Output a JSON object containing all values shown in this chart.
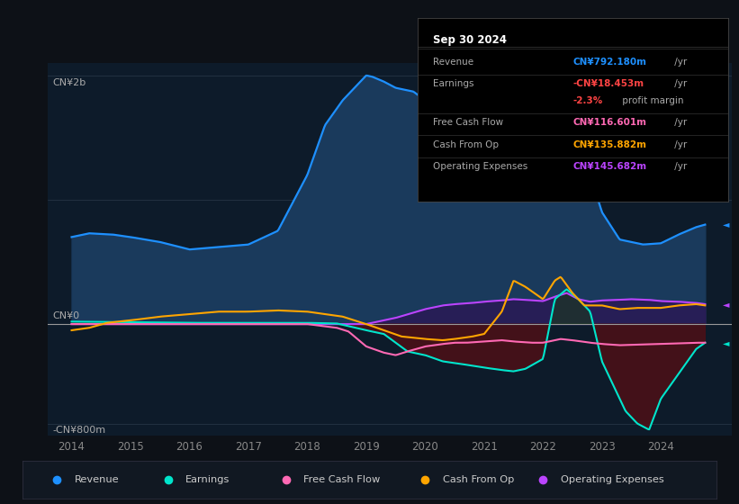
{
  "bg_color": "#0d1117",
  "plot_bg_color": "#0d1b2a",
  "ylabel_top": "CN¥2b",
  "ylabel_bottom": "-CN¥800m",
  "ylabel_zero": "CN¥0",
  "info_box_title": "Sep 30 2024",
  "legend": [
    {
      "label": "Revenue",
      "color": "#1e90ff"
    },
    {
      "label": "Earnings",
      "color": "#00e5cc"
    },
    {
      "label": "Free Cash Flow",
      "color": "#ff69b4"
    },
    {
      "label": "Cash From Op",
      "color": "#ffa500"
    },
    {
      "label": "Operating Expenses",
      "color": "#bb44ff"
    }
  ],
  "rev_color": "#1e90ff",
  "rev_fill": "#1a3a5c",
  "earn_color": "#00e5cc",
  "earn_fill_neg": "#5a1520",
  "fcf_color": "#ff69b4",
  "cfop_color": "#ffa500",
  "opex_color": "#bb44ff",
  "opex_fill": "#2a1a55",
  "ylim": [
    -900,
    2100
  ],
  "xlim_min": 2013.6,
  "xlim_max": 2025.2
}
